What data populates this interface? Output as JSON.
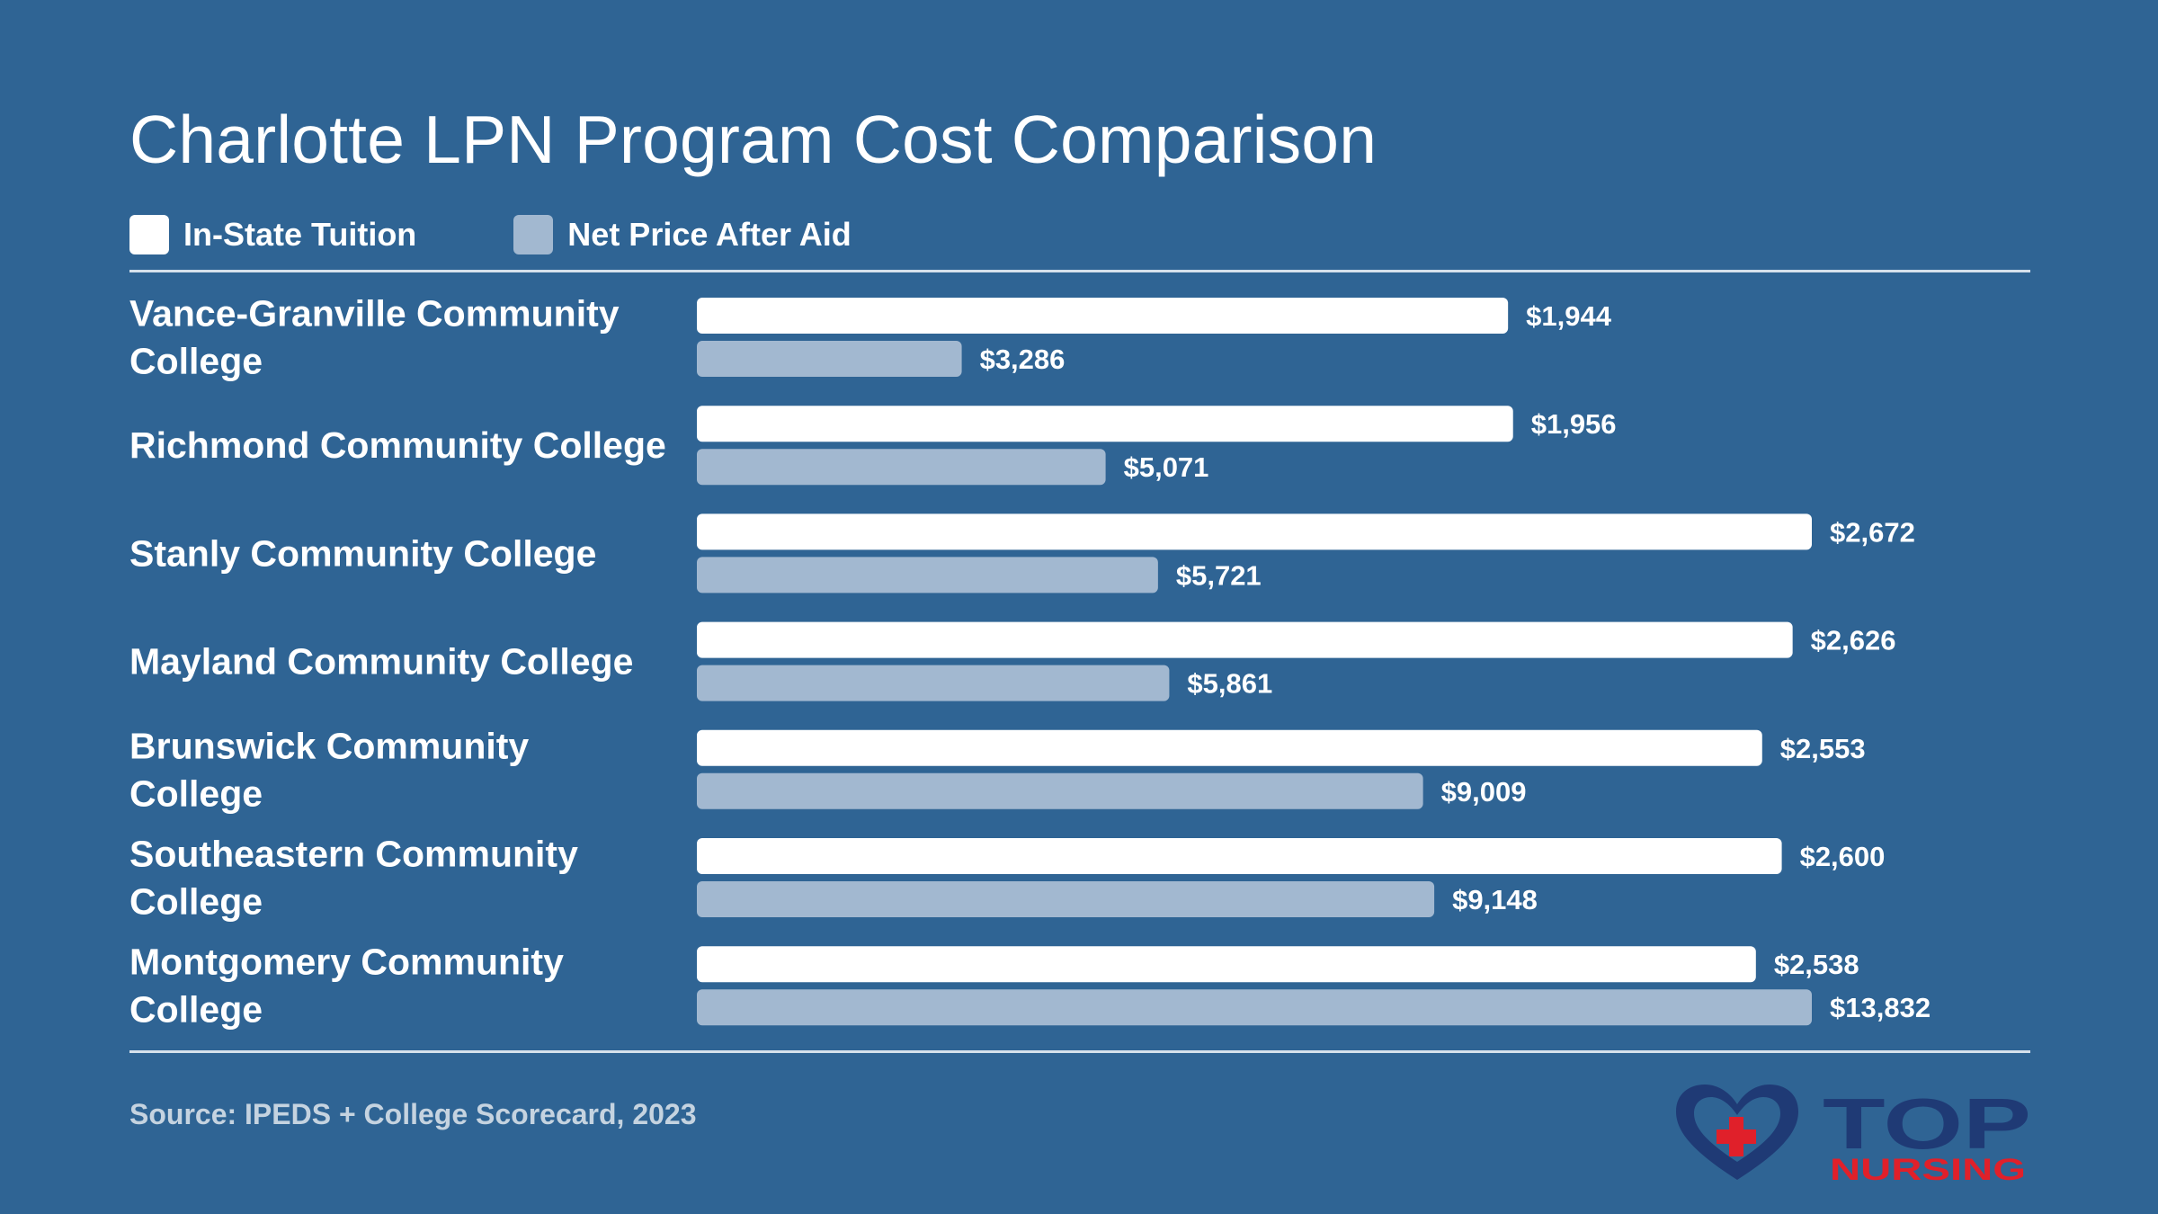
{
  "title": "Charlotte LPN Program Cost Comparison",
  "legend": [
    {
      "label": "In-State Tuition",
      "color": "#ffffff"
    },
    {
      "label": "Net Price After Aid",
      "color": "#a2b8d0"
    }
  ],
  "source": "Source: IPEDS + College Scorecard, 2023",
  "logo": {
    "top_text": "TOP",
    "bottom_text": "NURSING"
  },
  "colors": {
    "background": "#2f6494",
    "series_tuition": "#ffffff",
    "series_net": "#a2b8d0",
    "logo_navy": "#1f3a75",
    "logo_red": "#e0202a"
  },
  "chart_data": {
    "type": "bar",
    "orientation": "horizontal",
    "title": "Charlotte LPN Program Cost Comparison",
    "categories": [
      "Vance-Granville Community College",
      "Richmond Community College",
      "Stanly Community College",
      "Mayland Community College",
      "Brunswick Community College",
      "Southeastern Community College",
      "Montgomery Community College"
    ],
    "category_lines": [
      [
        "Vance-Granville Community",
        "College"
      ],
      [
        "Richmond Community College"
      ],
      [
        "Stanly Community College"
      ],
      [
        "Mayland Community College"
      ],
      [
        "Brunswick Community",
        "College"
      ],
      [
        "Southeastern Community",
        "College"
      ],
      [
        "Montgomery Community",
        "College"
      ]
    ],
    "series": [
      {
        "name": "In-State Tuition",
        "color": "#ffffff",
        "values": [
          1944,
          1956,
          2672,
          2626,
          2553,
          2600,
          2538
        ],
        "labels": [
          "$1,944",
          "$1,956",
          "$2,672",
          "$2,626",
          "$2,553",
          "$2,600",
          "$2,538"
        ]
      },
      {
        "name": "Net Price After Aid",
        "color": "#a2b8d0",
        "values": [
          3286,
          5071,
          5721,
          5861,
          9009,
          9148,
          13832
        ],
        "labels": [
          "$3,286",
          "$5,071",
          "$5,721",
          "$5,861",
          "$9,009",
          "$9,148",
          "$13,832"
        ]
      }
    ],
    "xlabel": "",
    "ylabel": "",
    "grid": false,
    "legend_position": "top-left"
  }
}
